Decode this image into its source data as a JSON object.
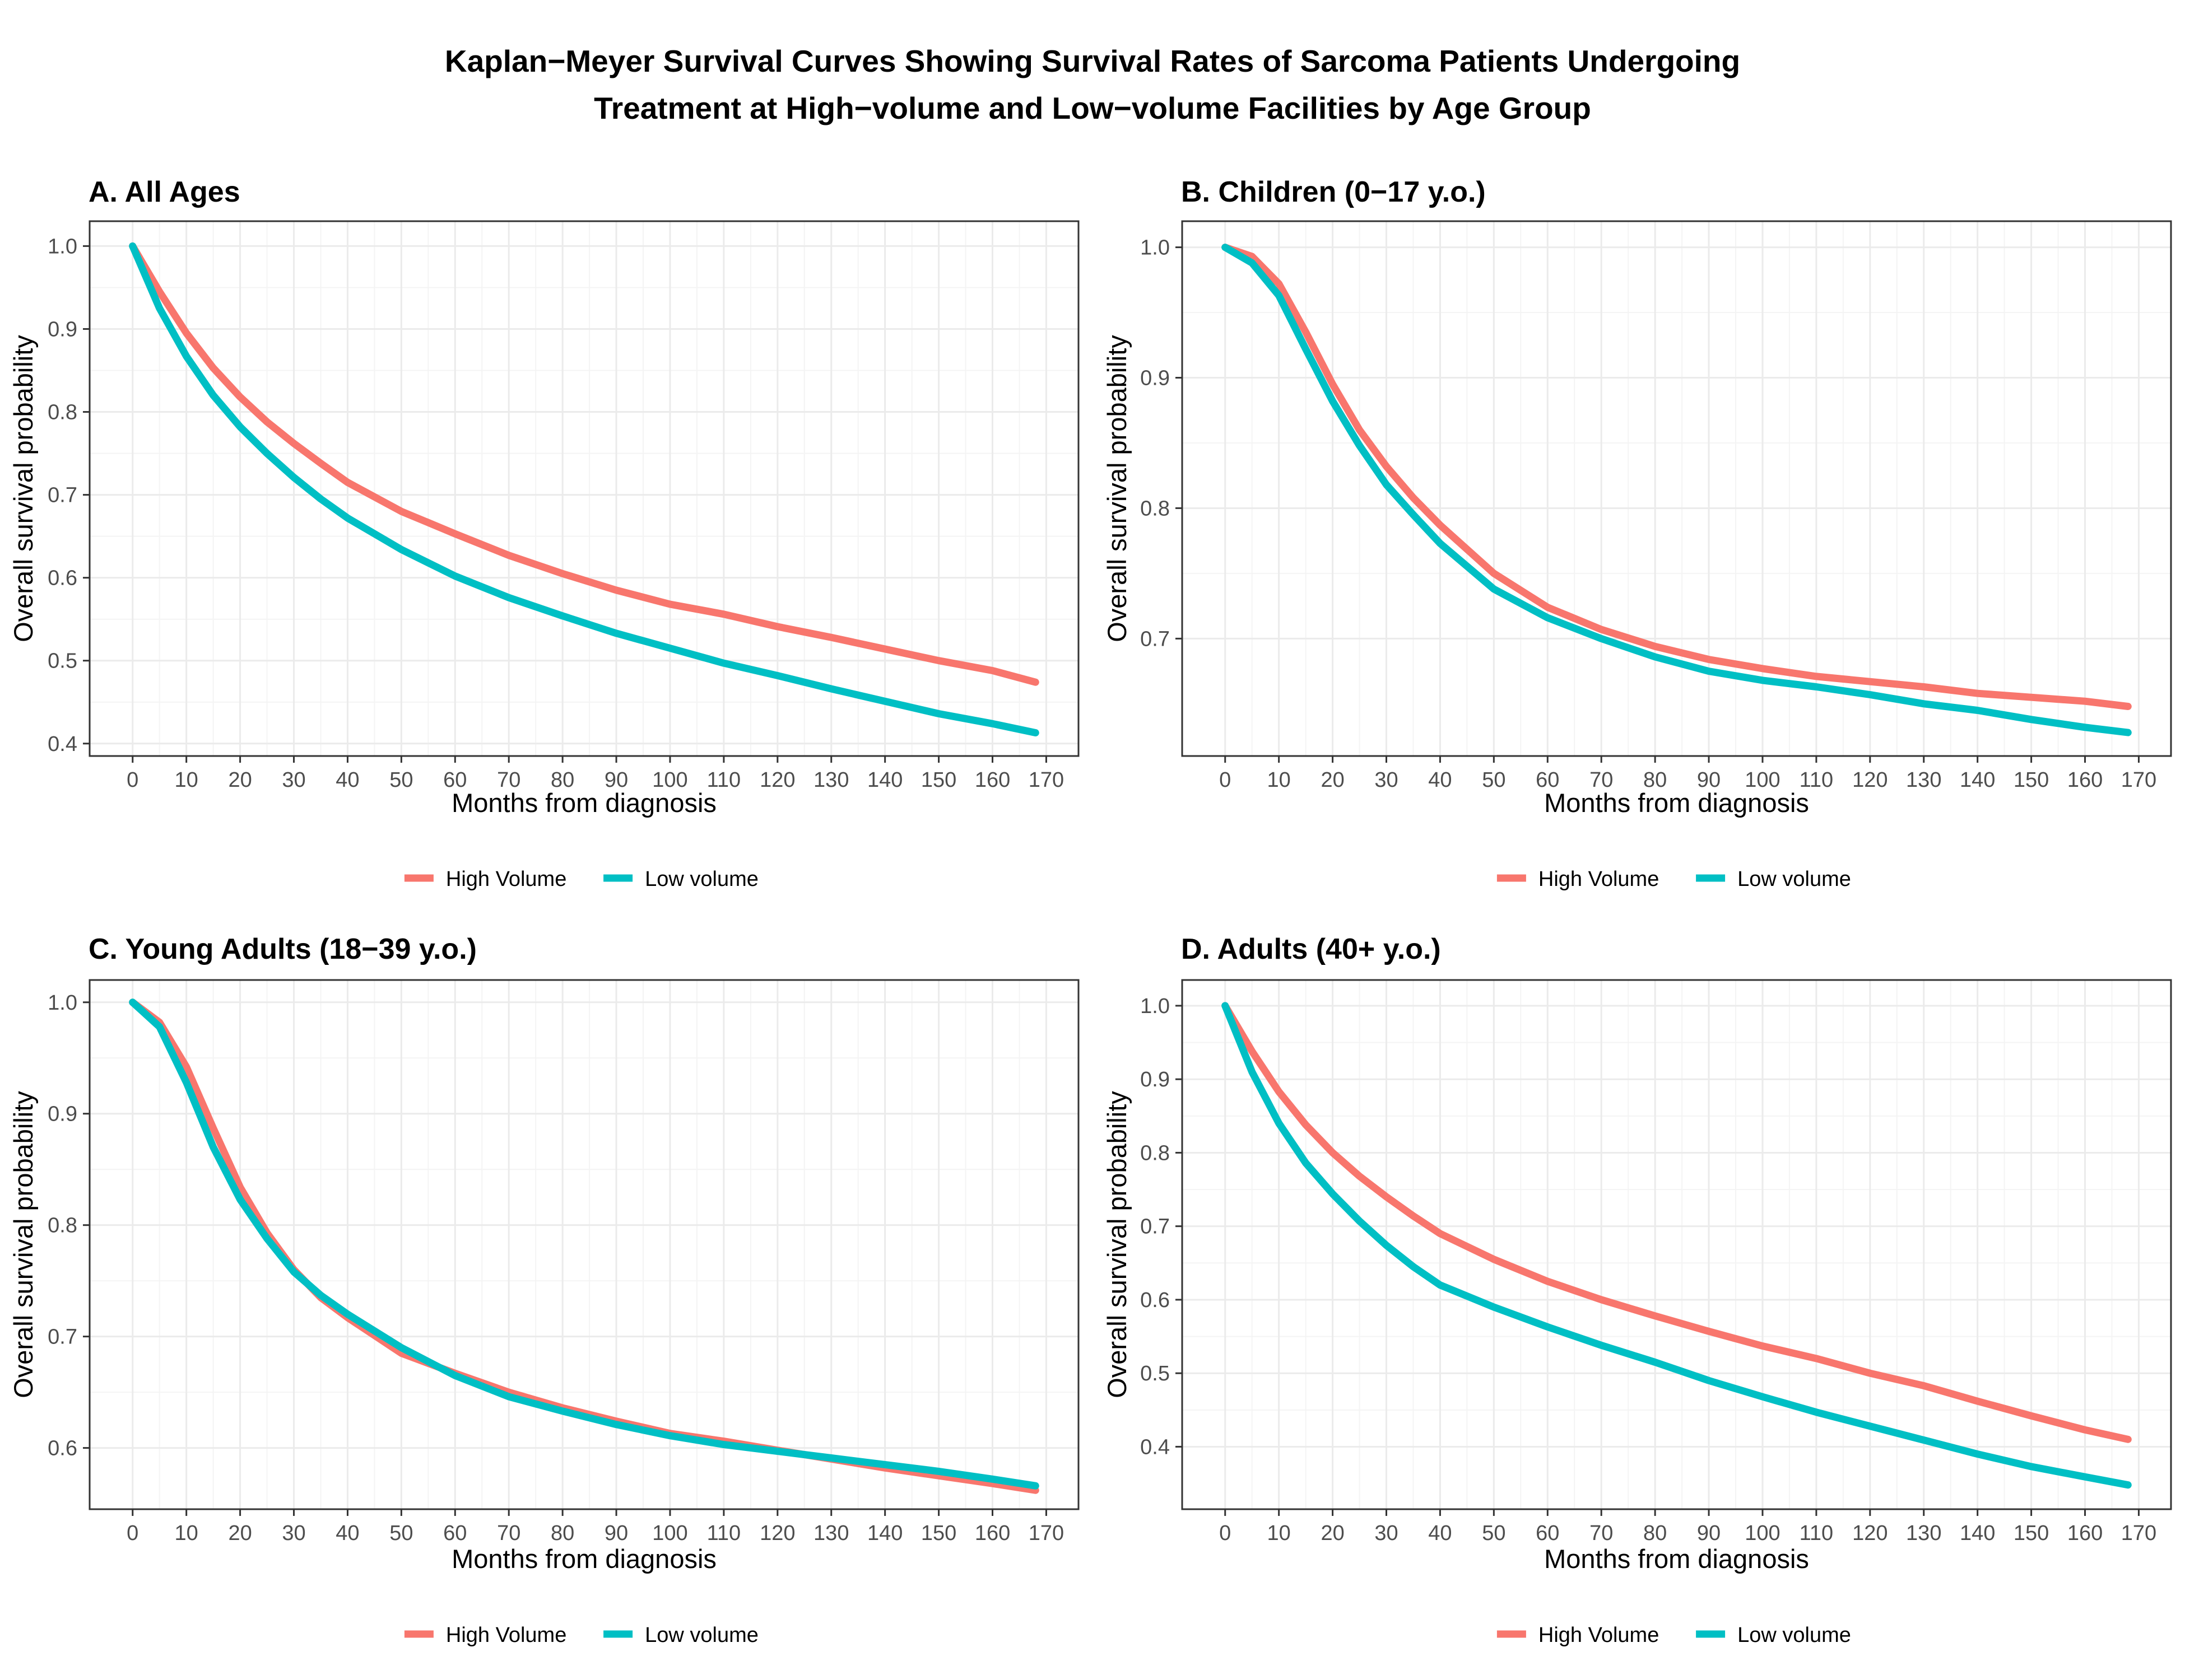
{
  "figure": {
    "title_line1": "Kaplan−Meyer Survival Curves Showing Survival Rates of Sarcoma Patients Undergoing",
    "title_line2": "Treatment at High−volume and Low−volume Facilities by Age Group"
  },
  "colors": {
    "high_volume": "#F8766D",
    "low_volume": "#00BFC4",
    "grid_major": "#EBEBEB",
    "grid_minor": "#F4F4F4",
    "panel_border": "#333333",
    "tick_text": "#4D4D4D"
  },
  "legend": {
    "position": "bottom",
    "entries": [
      "High Volume",
      "Low volume"
    ]
  },
  "chart_data": [
    {
      "type": "line",
      "title": "A. All Ages",
      "xlabel": "Months from diagnosis",
      "ylabel": "Overall survival probability",
      "xlim": [
        -8,
        176
      ],
      "ylim": [
        0.385,
        1.03
      ],
      "xticks": [
        0,
        10,
        20,
        30,
        40,
        50,
        60,
        70,
        80,
        90,
        100,
        110,
        120,
        130,
        140,
        150,
        160,
        170
      ],
      "yticks": [
        0.4,
        0.5,
        0.6,
        0.7,
        0.8,
        0.9,
        1.0
      ],
      "ytick_labels": [
        "0.4",
        "0.5",
        "0.6",
        "0.7",
        "0.8",
        "0.9",
        "1.0"
      ],
      "grid": true,
      "x": [
        0,
        5,
        10,
        15,
        20,
        25,
        30,
        35,
        40,
        50,
        60,
        70,
        80,
        90,
        100,
        110,
        120,
        130,
        140,
        150,
        160,
        168
      ],
      "series": [
        {
          "name": "High Volume",
          "values": [
            1.0,
            0.945,
            0.895,
            0.853,
            0.818,
            0.788,
            0.762,
            0.738,
            0.715,
            0.68,
            0.653,
            0.627,
            0.605,
            0.585,
            0.568,
            0.556,
            0.541,
            0.528,
            0.514,
            0.5,
            0.488,
            0.474
          ]
        },
        {
          "name": "Low volume",
          "values": [
            1.0,
            0.925,
            0.867,
            0.82,
            0.782,
            0.75,
            0.721,
            0.695,
            0.672,
            0.634,
            0.602,
            0.576,
            0.554,
            0.533,
            0.515,
            0.497,
            0.482,
            0.466,
            0.451,
            0.436,
            0.424,
            0.413
          ]
        }
      ]
    },
    {
      "type": "line",
      "title": "B. Children (0−17 y.o.)",
      "xlabel": "Months from diagnosis",
      "ylabel": "Overall survival probability",
      "xlim": [
        -8,
        176
      ],
      "ylim": [
        0.61,
        1.02
      ],
      "xticks": [
        0,
        10,
        20,
        30,
        40,
        50,
        60,
        70,
        80,
        90,
        100,
        110,
        120,
        130,
        140,
        150,
        160,
        170
      ],
      "yticks": [
        0.7,
        0.8,
        0.9,
        1.0
      ],
      "ytick_labels": [
        "0.7",
        "0.8",
        "0.9",
        "1.0"
      ],
      "grid": true,
      "x": [
        0,
        5,
        10,
        15,
        20,
        25,
        30,
        35,
        40,
        50,
        60,
        70,
        80,
        90,
        100,
        110,
        120,
        130,
        140,
        150,
        160,
        168
      ],
      "series": [
        {
          "name": "High Volume",
          "values": [
            1.0,
            0.993,
            0.972,
            0.935,
            0.895,
            0.86,
            0.832,
            0.808,
            0.787,
            0.75,
            0.724,
            0.707,
            0.694,
            0.684,
            0.677,
            0.671,
            0.667,
            0.663,
            0.658,
            0.655,
            0.652,
            0.648
          ]
        },
        {
          "name": "Low volume",
          "values": [
            1.0,
            0.988,
            0.963,
            0.922,
            0.882,
            0.848,
            0.818,
            0.795,
            0.773,
            0.738,
            0.716,
            0.7,
            0.686,
            0.675,
            0.668,
            0.663,
            0.657,
            0.65,
            0.645,
            0.638,
            0.632,
            0.628
          ]
        }
      ]
    },
    {
      "type": "line",
      "title": "C. Young Adults (18−39 y.o.)",
      "xlabel": "Months from diagnosis",
      "ylabel": "Overall survival probability",
      "xlim": [
        -8,
        176
      ],
      "ylim": [
        0.545,
        1.02
      ],
      "xticks": [
        0,
        10,
        20,
        30,
        40,
        50,
        60,
        70,
        80,
        90,
        100,
        110,
        120,
        130,
        140,
        150,
        160,
        170
      ],
      "yticks": [
        0.6,
        0.7,
        0.8,
        0.9,
        1.0
      ],
      "ytick_labels": [
        "0.6",
        "0.7",
        "0.8",
        "0.9",
        "1.0"
      ],
      "grid": true,
      "x": [
        0,
        5,
        10,
        15,
        20,
        25,
        30,
        35,
        40,
        50,
        60,
        70,
        80,
        90,
        100,
        110,
        120,
        130,
        140,
        150,
        160,
        168
      ],
      "series": [
        {
          "name": "High Volume",
          "values": [
            1.0,
            0.982,
            0.942,
            0.887,
            0.834,
            0.793,
            0.76,
            0.735,
            0.717,
            0.685,
            0.667,
            0.65,
            0.636,
            0.624,
            0.613,
            0.606,
            0.598,
            0.59,
            0.582,
            0.575,
            0.568,
            0.562
          ]
        },
        {
          "name": "Low volume",
          "values": [
            1.0,
            0.978,
            0.928,
            0.87,
            0.823,
            0.788,
            0.758,
            0.737,
            0.72,
            0.69,
            0.665,
            0.646,
            0.633,
            0.621,
            0.611,
            0.603,
            0.597,
            0.591,
            0.585,
            0.579,
            0.572,
            0.566
          ]
        }
      ]
    },
    {
      "type": "line",
      "title": "D. Adults (40+ y.o.)",
      "xlabel": "Months from diagnosis",
      "ylabel": "Overall survival probability",
      "xlim": [
        -8,
        176
      ],
      "ylim": [
        0.315,
        1.035
      ],
      "xticks": [
        0,
        10,
        20,
        30,
        40,
        50,
        60,
        70,
        80,
        90,
        100,
        110,
        120,
        130,
        140,
        150,
        160,
        170
      ],
      "yticks": [
        0.4,
        0.5,
        0.6,
        0.7,
        0.8,
        0.9,
        1.0
      ],
      "ytick_labels": [
        "0.4",
        "0.5",
        "0.6",
        "0.7",
        "0.8",
        "0.9",
        "1.0"
      ],
      "grid": true,
      "x": [
        0,
        5,
        10,
        15,
        20,
        25,
        30,
        35,
        40,
        50,
        60,
        70,
        80,
        90,
        100,
        110,
        120,
        130,
        140,
        150,
        160,
        168
      ],
      "series": [
        {
          "name": "High Volume",
          "values": [
            1.0,
            0.938,
            0.883,
            0.838,
            0.8,
            0.768,
            0.74,
            0.714,
            0.69,
            0.655,
            0.625,
            0.6,
            0.578,
            0.557,
            0.537,
            0.52,
            0.5,
            0.483,
            0.462,
            0.442,
            0.423,
            0.41
          ]
        },
        {
          "name": "Low volume",
          "values": [
            1.0,
            0.91,
            0.84,
            0.786,
            0.744,
            0.707,
            0.674,
            0.645,
            0.62,
            0.59,
            0.563,
            0.538,
            0.515,
            0.49,
            0.468,
            0.447,
            0.428,
            0.409,
            0.39,
            0.373,
            0.359,
            0.348
          ]
        }
      ]
    }
  ]
}
